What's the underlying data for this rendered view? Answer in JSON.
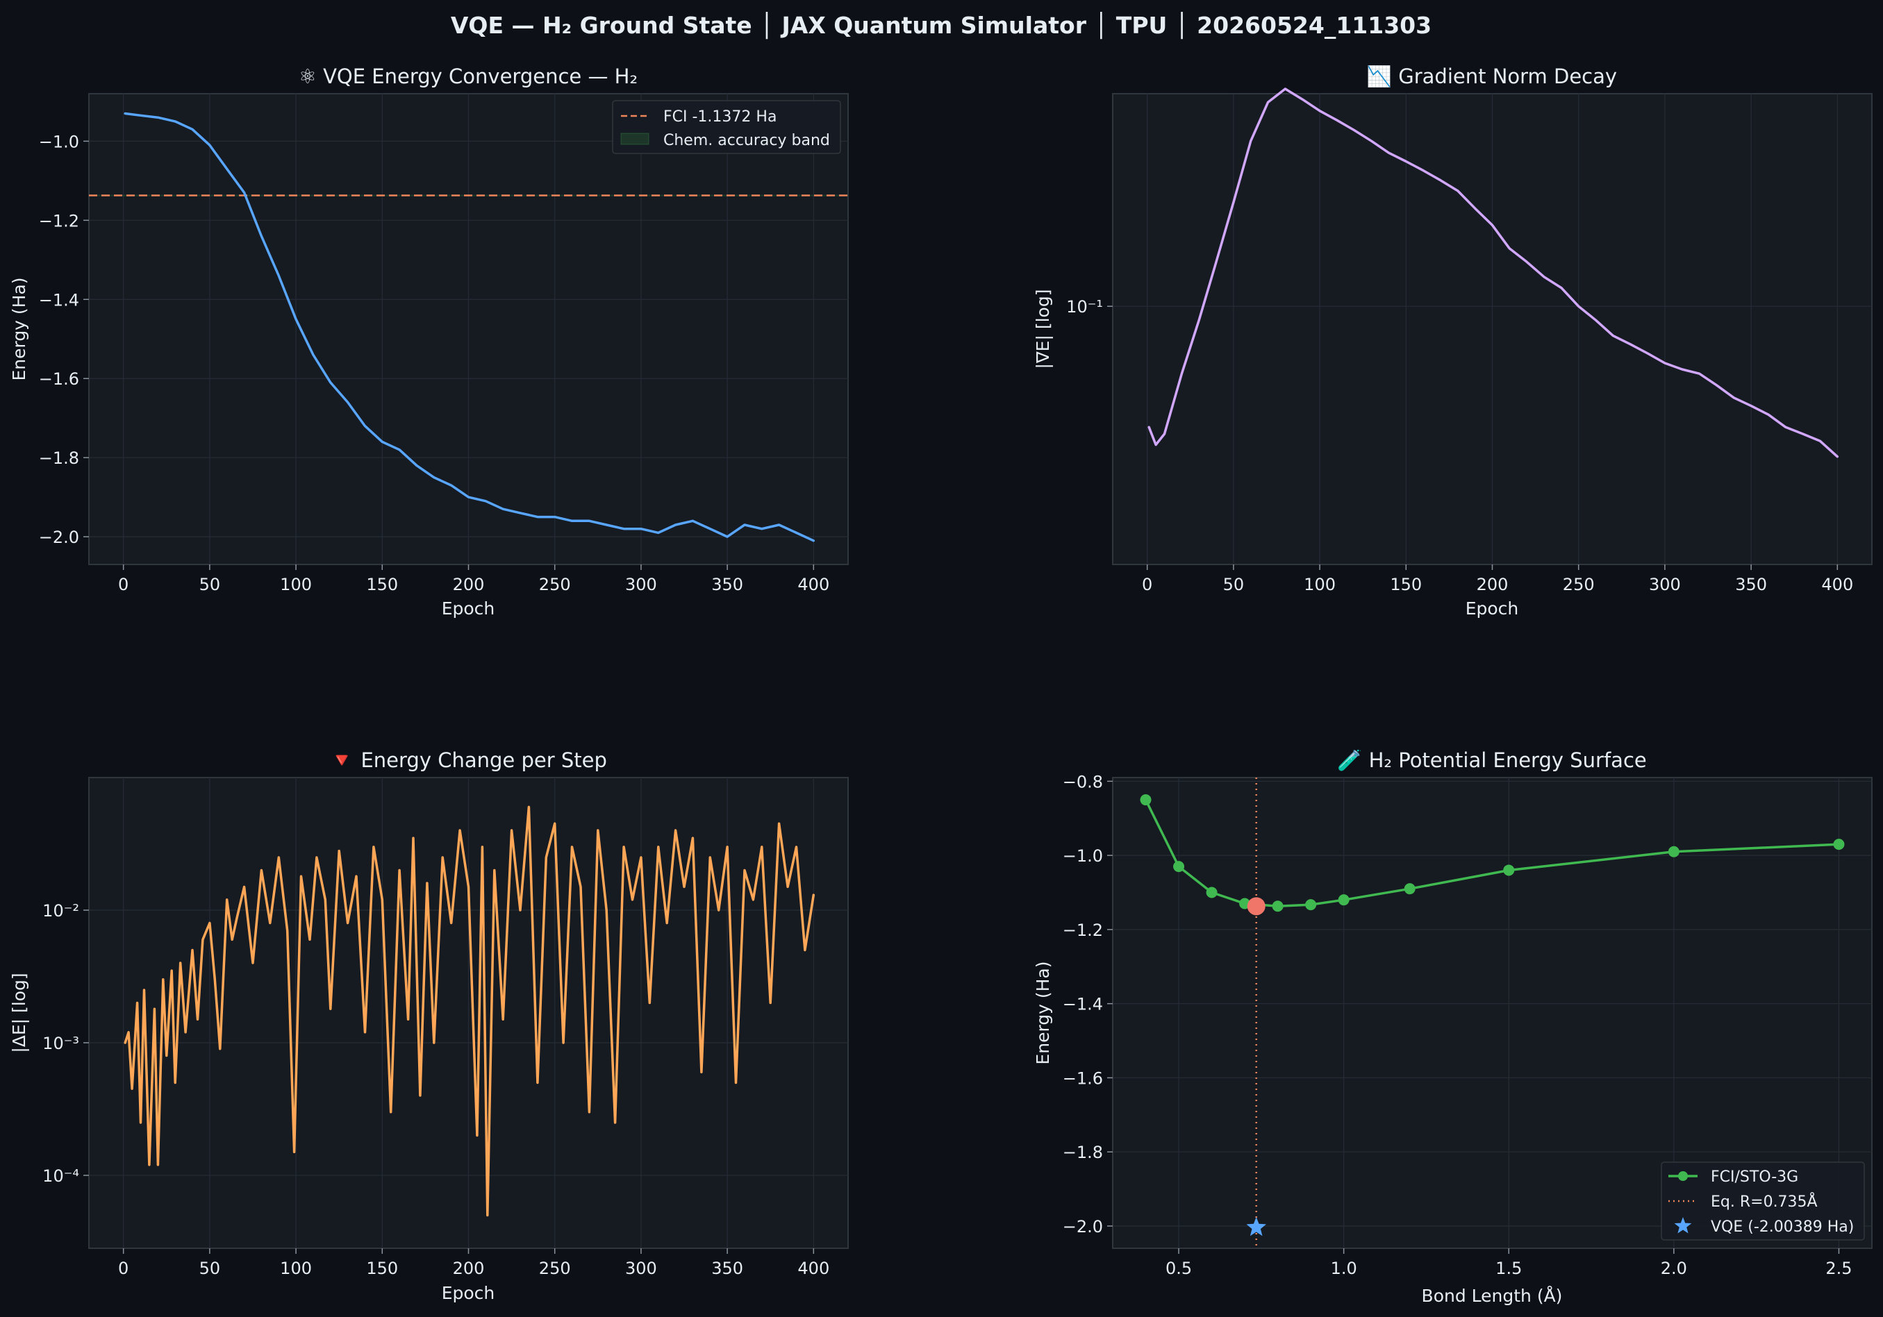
{
  "figure": {
    "title": "VQE — H₂ Ground State │ JAX Quantum Simulator │ TPU │ 20260524_111303",
    "background": "#0d1117",
    "panel_background": "#161b22",
    "text_color": "#e6edf3"
  },
  "chart_data": [
    {
      "id": "energy",
      "type": "line",
      "title": "⚛  VQE Energy Convergence — H₂",
      "xlabel": "Epoch",
      "ylabel": "Energy (Ha)",
      "xlim": [
        -20,
        420
      ],
      "ylim": [
        -2.07,
        -0.88
      ],
      "xticks": [
        0,
        50,
        100,
        150,
        200,
        250,
        300,
        350,
        400
      ],
      "yticks": [
        -1.0,
        -1.2,
        -1.4,
        -1.6,
        -1.8,
        -2.0
      ],
      "ytick_labels": [
        "−1.0",
        "−1.2",
        "−1.4",
        "−1.6",
        "−1.8",
        "−2.0"
      ],
      "grid": true,
      "legend": "top-right",
      "series": [
        {
          "color": "#58a6ff",
          "x": [
            1,
            10,
            20,
            30,
            40,
            50,
            60,
            70,
            80,
            90,
            100,
            110,
            120,
            130,
            140,
            150,
            160,
            170,
            180,
            190,
            200,
            210,
            220,
            230,
            240,
            250,
            260,
            270,
            280,
            290,
            300,
            310,
            320,
            330,
            340,
            350,
            360,
            370,
            380,
            390,
            400
          ],
          "y": [
            -0.93,
            -0.935,
            -0.94,
            -0.95,
            -0.97,
            -1.01,
            -1.07,
            -1.13,
            -1.24,
            -1.34,
            -1.45,
            -1.54,
            -1.61,
            -1.66,
            -1.72,
            -1.76,
            -1.78,
            -1.82,
            -1.85,
            -1.87,
            -1.9,
            -1.91,
            -1.93,
            -1.94,
            -1.95,
            -1.95,
            -1.96,
            -1.96,
            -1.97,
            -1.98,
            -1.98,
            -1.99,
            -1.97,
            -1.96,
            -1.98,
            -2.0,
            -1.97,
            -1.98,
            -1.97,
            -1.99,
            -2.01
          ]
        }
      ],
      "reference_lines": [
        {
          "name": "FCI -1.1372 Ha",
          "y": -1.1372,
          "color": "#f0855a",
          "style": "dashed"
        }
      ],
      "bands": [
        {
          "name": "Chem. accuracy band",
          "y": [
            -1.1388,
            -1.1356
          ],
          "color": "#3fb950"
        }
      ]
    },
    {
      "id": "gradient",
      "type": "line",
      "title": "📉  Gradient Norm Decay",
      "xlabel": "Epoch",
      "ylabel": "|∇E| [log]",
      "xlim": [
        -20,
        420
      ],
      "ylim_log10": [
        -1.85,
        -0.3
      ],
      "xticks": [
        0,
        50,
        100,
        150,
        200,
        250,
        300,
        350,
        400
      ],
      "yticks_log10": [
        -1
      ],
      "ytick_labels": [
        "10⁻¹"
      ],
      "grid": true,
      "series": [
        {
          "color": "#d2a8ff",
          "x": [
            1,
            5,
            10,
            20,
            30,
            40,
            50,
            60,
            70,
            80,
            90,
            100,
            110,
            120,
            130,
            140,
            150,
            160,
            170,
            180,
            190,
            200,
            210,
            220,
            230,
            240,
            250,
            260,
            270,
            280,
            290,
            300,
            310,
            320,
            330,
            340,
            350,
            360,
            370,
            380,
            390,
            400
          ],
          "y": [
            0.04,
            0.035,
            0.038,
            0.06,
            0.09,
            0.14,
            0.22,
            0.35,
            0.47,
            0.52,
            0.48,
            0.44,
            0.41,
            0.38,
            0.35,
            0.32,
            0.3,
            0.28,
            0.26,
            0.24,
            0.21,
            0.185,
            0.155,
            0.14,
            0.125,
            0.115,
            0.1,
            0.09,
            0.08,
            0.075,
            0.07,
            0.065,
            0.062,
            0.06,
            0.055,
            0.05,
            0.047,
            0.044,
            0.04,
            0.038,
            0.036,
            0.032
          ]
        }
      ]
    },
    {
      "id": "delta",
      "type": "line",
      "title": "🔻  Energy Change per Step",
      "xlabel": "Epoch",
      "ylabel": "|ΔE| [log]",
      "xlim": [
        -20,
        420
      ],
      "ylim_log10": [
        -4.55,
        -1.0
      ],
      "xticks": [
        0,
        50,
        100,
        150,
        200,
        250,
        300,
        350,
        400
      ],
      "yticks_log10": [
        -2,
        -3,
        -4
      ],
      "ytick_labels": [
        "10⁻²",
        "10⁻³",
        "10⁻⁴"
      ],
      "grid": true,
      "series": [
        {
          "color": "#ffa657",
          "x": [
            1,
            3,
            5,
            8,
            10,
            12,
            15,
            18,
            20,
            23,
            25,
            28,
            30,
            33,
            36,
            40,
            43,
            46,
            50,
            53,
            56,
            60,
            63,
            66,
            70,
            75,
            80,
            85,
            90,
            95,
            99,
            103,
            108,
            112,
            117,
            120,
            125,
            130,
            135,
            140,
            145,
            150,
            155,
            160,
            165,
            168,
            172,
            176,
            180,
            185,
            190,
            195,
            200,
            205,
            208,
            211,
            215,
            220,
            225,
            230,
            235,
            240,
            245,
            250,
            255,
            260,
            265,
            270,
            275,
            280,
            285,
            290,
            295,
            300,
            305,
            310,
            315,
            320,
            325,
            330,
            335,
            340,
            345,
            350,
            355,
            360,
            365,
            370,
            375,
            380,
            385,
            390,
            395,
            400
          ],
          "y": [
            0.001,
            0.0012,
            0.00045,
            0.002,
            0.00025,
            0.0025,
            0.00012,
            0.0018,
            0.00012,
            0.003,
            0.0008,
            0.0035,
            0.0005,
            0.004,
            0.0012,
            0.005,
            0.0015,
            0.006,
            0.008,
            0.003,
            0.0009,
            0.012,
            0.006,
            0.009,
            0.015,
            0.004,
            0.02,
            0.008,
            0.025,
            0.007,
            0.00015,
            0.018,
            0.006,
            0.025,
            0.012,
            0.0018,
            0.028,
            0.008,
            0.018,
            0.0012,
            0.03,
            0.012,
            0.0003,
            0.02,
            0.0015,
            0.035,
            0.0004,
            0.016,
            0.001,
            0.025,
            0.008,
            0.04,
            0.015,
            0.0002,
            0.03,
            5e-05,
            0.02,
            0.0015,
            0.04,
            0.01,
            0.06,
            0.0005,
            0.025,
            0.045,
            0.001,
            0.03,
            0.015,
            0.0003,
            0.04,
            0.01,
            0.00025,
            0.03,
            0.012,
            0.025,
            0.002,
            0.03,
            0.008,
            0.04,
            0.015,
            0.035,
            0.0006,
            0.025,
            0.01,
            0.03,
            0.0005,
            0.02,
            0.012,
            0.03,
            0.002,
            0.045,
            0.015,
            0.03,
            0.005,
            0.013
          ]
        }
      ]
    },
    {
      "id": "pes",
      "type": "line",
      "title": "🧪  H₂ Potential Energy Surface",
      "xlabel": "Bond Length (Å)",
      "ylabel": "Energy (Ha)",
      "xlim": [
        0.3,
        2.6
      ],
      "ylim": [
        -2.06,
        -0.79
      ],
      "xticks": [
        0.5,
        1.0,
        1.5,
        2.0,
        2.5
      ],
      "xtick_labels": [
        "0.5",
        "1.0",
        "1.5",
        "2.0",
        "2.5"
      ],
      "yticks": [
        -0.8,
        -1.0,
        -1.2,
        -1.4,
        -1.6,
        -1.8,
        -2.0
      ],
      "ytick_labels": [
        "−0.8",
        "−1.0",
        "−1.2",
        "−1.4",
        "−1.6",
        "−1.8",
        "−2.0"
      ],
      "grid": true,
      "legend": "bottom-right",
      "series": [
        {
          "name": "FCI/STO-3G",
          "color": "#3fb950",
          "marker": "circle",
          "x": [
            0.4,
            0.5,
            0.6,
            0.7,
            0.8,
            0.9,
            1.0,
            1.2,
            1.5,
            2.0,
            2.5
          ],
          "y": [
            -0.85,
            -1.03,
            -1.1,
            -1.13,
            -1.137,
            -1.133,
            -1.12,
            -1.09,
            -1.04,
            -0.99,
            -0.97
          ]
        }
      ],
      "reference_lines": [
        {
          "name": "Eq. R=0.735Å",
          "x": 0.735,
          "color": "#f0855a",
          "style": "dotted"
        }
      ],
      "markers": [
        {
          "name": "Equilibrium",
          "x": 0.735,
          "y": -1.1372,
          "color": "#f0766a",
          "shape": "circle"
        },
        {
          "name": "VQE (-2.00389 Ha)",
          "x": 0.735,
          "y": -2.00389,
          "color": "#58a6ff",
          "shape": "star"
        }
      ]
    }
  ]
}
